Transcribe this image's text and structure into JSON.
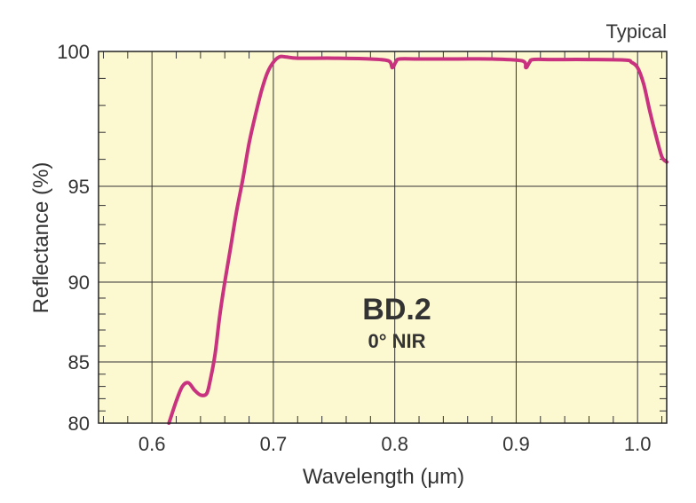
{
  "chart_data": {
    "type": "line",
    "title": "",
    "note": "Typical",
    "xlabel": "Wavelength (μm)",
    "ylabel": "Reflectance (%)",
    "xlim": [
      0.556,
      1.024
    ],
    "ylim": [
      80,
      100
    ],
    "x_ticks": [
      0.6,
      0.7,
      0.8,
      0.9,
      1.0
    ],
    "x_tick_labels": [
      "0.6",
      "0.7",
      "0.8",
      "0.9",
      "1.0"
    ],
    "y_ticks": [
      80,
      85,
      90,
      95,
      100
    ],
    "y_tick_labels": [
      "80",
      "85",
      "90",
      "95",
      "100"
    ],
    "y_scale": "nonlinear (compressed toward 100)",
    "grid": true,
    "background_color": "#fcf8d0",
    "line_color": "#c8327e",
    "annotation": {
      "title": "BD.2",
      "subtitle": "0° NIR"
    },
    "series": [
      {
        "x": [
          0.614,
          0.62,
          0.625,
          0.63,
          0.635,
          0.64,
          0.645,
          0.648,
          0.652,
          0.656,
          0.66,
          0.665,
          0.67,
          0.675,
          0.68,
          0.685,
          0.69,
          0.695,
          0.7,
          0.705,
          0.71,
          0.72,
          0.75,
          0.78,
          0.795,
          0.798,
          0.801,
          0.804,
          0.82,
          0.85,
          0.88,
          0.905,
          0.908,
          0.911,
          0.914,
          0.93,
          0.96,
          0.99,
          0.995,
          1.0,
          1.005,
          1.01,
          1.015,
          1.02,
          1.024
        ],
        "y": [
          80.0,
          81.8,
          83.0,
          83.3,
          82.7,
          82.3,
          82.4,
          83.5,
          85.5,
          88.0,
          90.0,
          91.9,
          93.8,
          95.3,
          96.6,
          97.6,
          98.5,
          99.2,
          99.6,
          99.8,
          99.8,
          99.75,
          99.75,
          99.72,
          99.65,
          99.4,
          99.62,
          99.72,
          99.72,
          99.72,
          99.72,
          99.65,
          99.4,
          99.6,
          99.7,
          99.7,
          99.7,
          99.68,
          99.6,
          99.4,
          98.8,
          97.8,
          96.9,
          96.1,
          95.9
        ]
      }
    ]
  }
}
